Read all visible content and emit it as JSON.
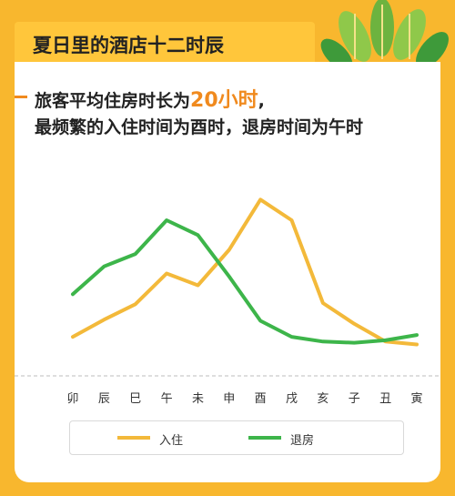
{
  "header": {
    "title": "夏日里的酒店十二时辰"
  },
  "subtitle": {
    "line1_before": "旅客平均住房时长为",
    "line1_highlight": "20小时",
    "line1_after": ",",
    "line2": "最频繁的入住时间为酉时，退房时间为午时"
  },
  "colors": {
    "background": "#F8B72E",
    "title_bar": "#FFC63B",
    "accent": "#F08A1E",
    "checkin": "#F3B93A",
    "checkout": "#3DB54A"
  },
  "chart_data": {
    "type": "line",
    "categories": [
      "卯",
      "辰",
      "巳",
      "午",
      "未",
      "申",
      "酉",
      "戌",
      "亥",
      "子",
      "丑",
      "寅"
    ],
    "ylim": [
      0,
      30
    ],
    "yticks": [
      "",
      "",
      "",
      ""
    ],
    "grid": false,
    "legend_position": "bottom",
    "series": [
      {
        "name": "入住",
        "color": "#F3B93A",
        "values": [
          2.3,
          5.2,
          7.8,
          13.0,
          11.0,
          17.0,
          25.5,
          22.0,
          8.0,
          4.5,
          1.5,
          1.0
        ]
      },
      {
        "name": "退房",
        "color": "#3DB54A",
        "values": [
          9.5,
          14.2,
          16.3,
          22.0,
          19.5,
          12.5,
          5.0,
          2.3,
          1.5,
          1.3,
          1.7,
          2.6
        ]
      }
    ]
  }
}
